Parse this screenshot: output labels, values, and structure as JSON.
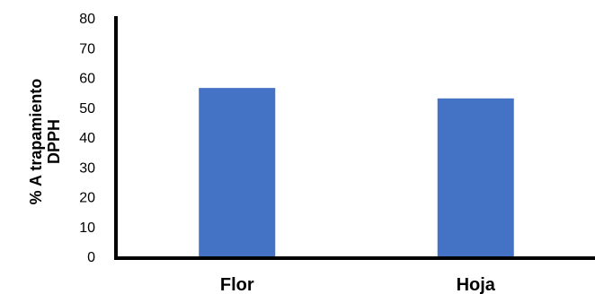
{
  "chart_data": {
    "type": "bar",
    "categories": [
      "Flor",
      "Hoja"
    ],
    "values": [
      56.5,
      53
    ],
    "ylabel": [
      "% A trapamiento",
      "DPPH"
    ],
    "xlabel": "",
    "title": "",
    "ylim": [
      0,
      80
    ],
    "yticks": [
      "0",
      "10",
      "20",
      "30",
      "40",
      "50",
      "60",
      "70",
      "80"
    ],
    "grid": false,
    "legend": "none",
    "bar_color": "#4472c4",
    "axis_color": "#000000"
  }
}
